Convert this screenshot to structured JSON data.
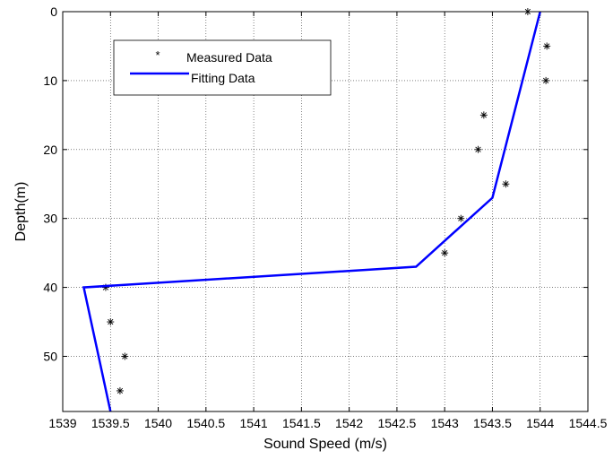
{
  "chart_data": {
    "type": "scatter",
    "title": "",
    "xlabel": "Sound Speed (m/s)",
    "ylabel": "Depth(m)",
    "xlim": [
      1539,
      1544.5
    ],
    "ylim": [
      0,
      58
    ],
    "y_reversed": true,
    "grid": true,
    "legend_position": "top-left",
    "x_ticks": [
      "1539",
      "1539.5",
      "1540",
      "1540.5",
      "1541",
      "1541.5",
      "1542",
      "1542.5",
      "1543",
      "1543.5",
      "1544",
      "1544.5"
    ],
    "y_ticks": [
      "0",
      "10",
      "20",
      "30",
      "40",
      "50"
    ],
    "series": [
      {
        "name": "Measured Data",
        "style": "markers",
        "marker": "*",
        "color": "#000000",
        "x": [
          1543.87,
          1544.07,
          1544.06,
          1543.41,
          1543.35,
          1543.64,
          1543.17,
          1543.0,
          1539.45,
          1539.5,
          1539.65,
          1539.6
        ],
        "y": [
          0,
          5,
          10,
          15,
          20,
          25,
          30,
          35,
          40,
          45,
          50,
          55
        ]
      },
      {
        "name": "Fitting Data",
        "style": "line",
        "color": "#0000ff",
        "x": [
          1544.0,
          1543.5,
          1542.7,
          1539.22,
          1539.5
        ],
        "y": [
          0,
          27,
          37,
          40,
          58
        ]
      }
    ]
  }
}
